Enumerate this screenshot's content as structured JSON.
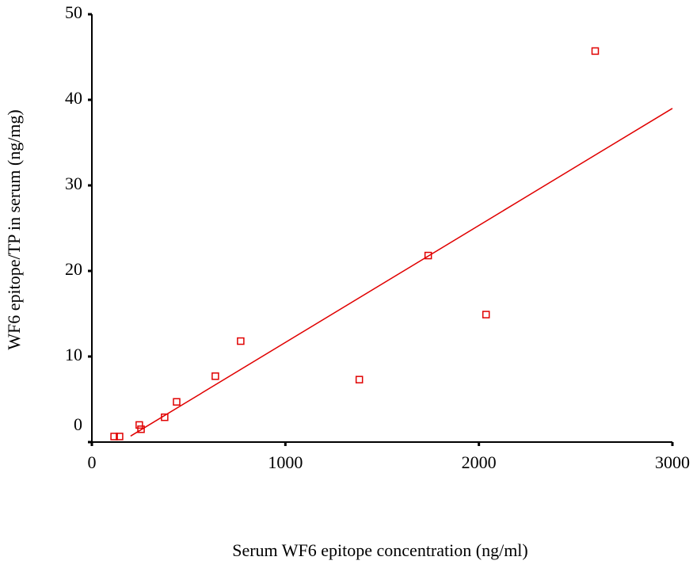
{
  "chart_data": {
    "type": "scatter",
    "x_label": "Serum WF6 epitope concentration (ng/ml)",
    "y_label": "WF6 epitope/TP in serum (ng/mg)",
    "x": [
      115,
      143,
      245,
      254,
      376,
      438,
      638,
      769,
      1382,
      1738,
      2037,
      2601
    ],
    "values": [
      0.65,
      0.65,
      2.0,
      1.5,
      2.9,
      4.7,
      7.7,
      11.8,
      7.3,
      21.8,
      14.9,
      45.7
    ],
    "color": "#e00000",
    "fit_line": {
      "x": [
        200,
        3000
      ],
      "y": [
        0.7,
        39.0
      ]
    },
    "xlim": [
      0,
      3000
    ],
    "xticks": [
      0,
      1000,
      2000,
      3000
    ],
    "ylim": [
      0,
      50
    ],
    "yticks": [
      0,
      10,
      20,
      30,
      40,
      50
    ]
  }
}
